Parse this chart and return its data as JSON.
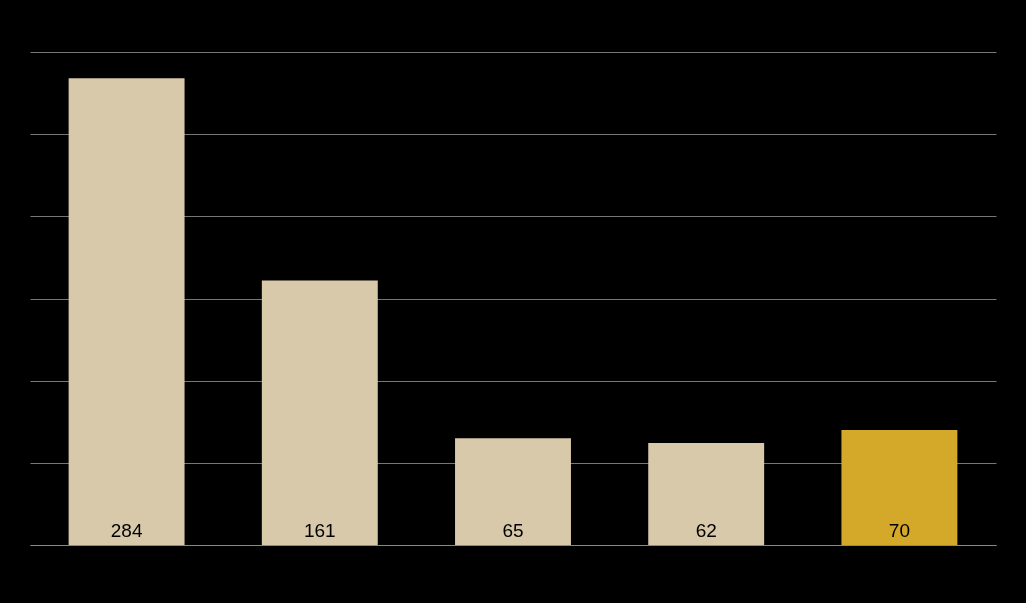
{
  "chart_data": {
    "type": "bar",
    "categories": [
      null,
      null,
      null,
      null,
      null
    ],
    "values": [
      284,
      161,
      65,
      62,
      70
    ],
    "colors": [
      "#d9c9ab",
      "#d9c9ab",
      "#d9c9ab",
      "#d9c9ab",
      "#d4a92a"
    ],
    "ylim": [
      0,
      300
    ],
    "yticks": [
      {
        "value": 0,
        "label": null
      },
      {
        "value": 50,
        "label": null
      },
      {
        "value": 100,
        "label": null
      },
      {
        "value": 150,
        "label": null
      },
      {
        "value": 200,
        "label": null
      },
      {
        "value": 250,
        "label": null
      },
      {
        "value": 300,
        "label": null
      }
    ],
    "grid": true,
    "data_labels": true,
    "tick_labels": false
  }
}
